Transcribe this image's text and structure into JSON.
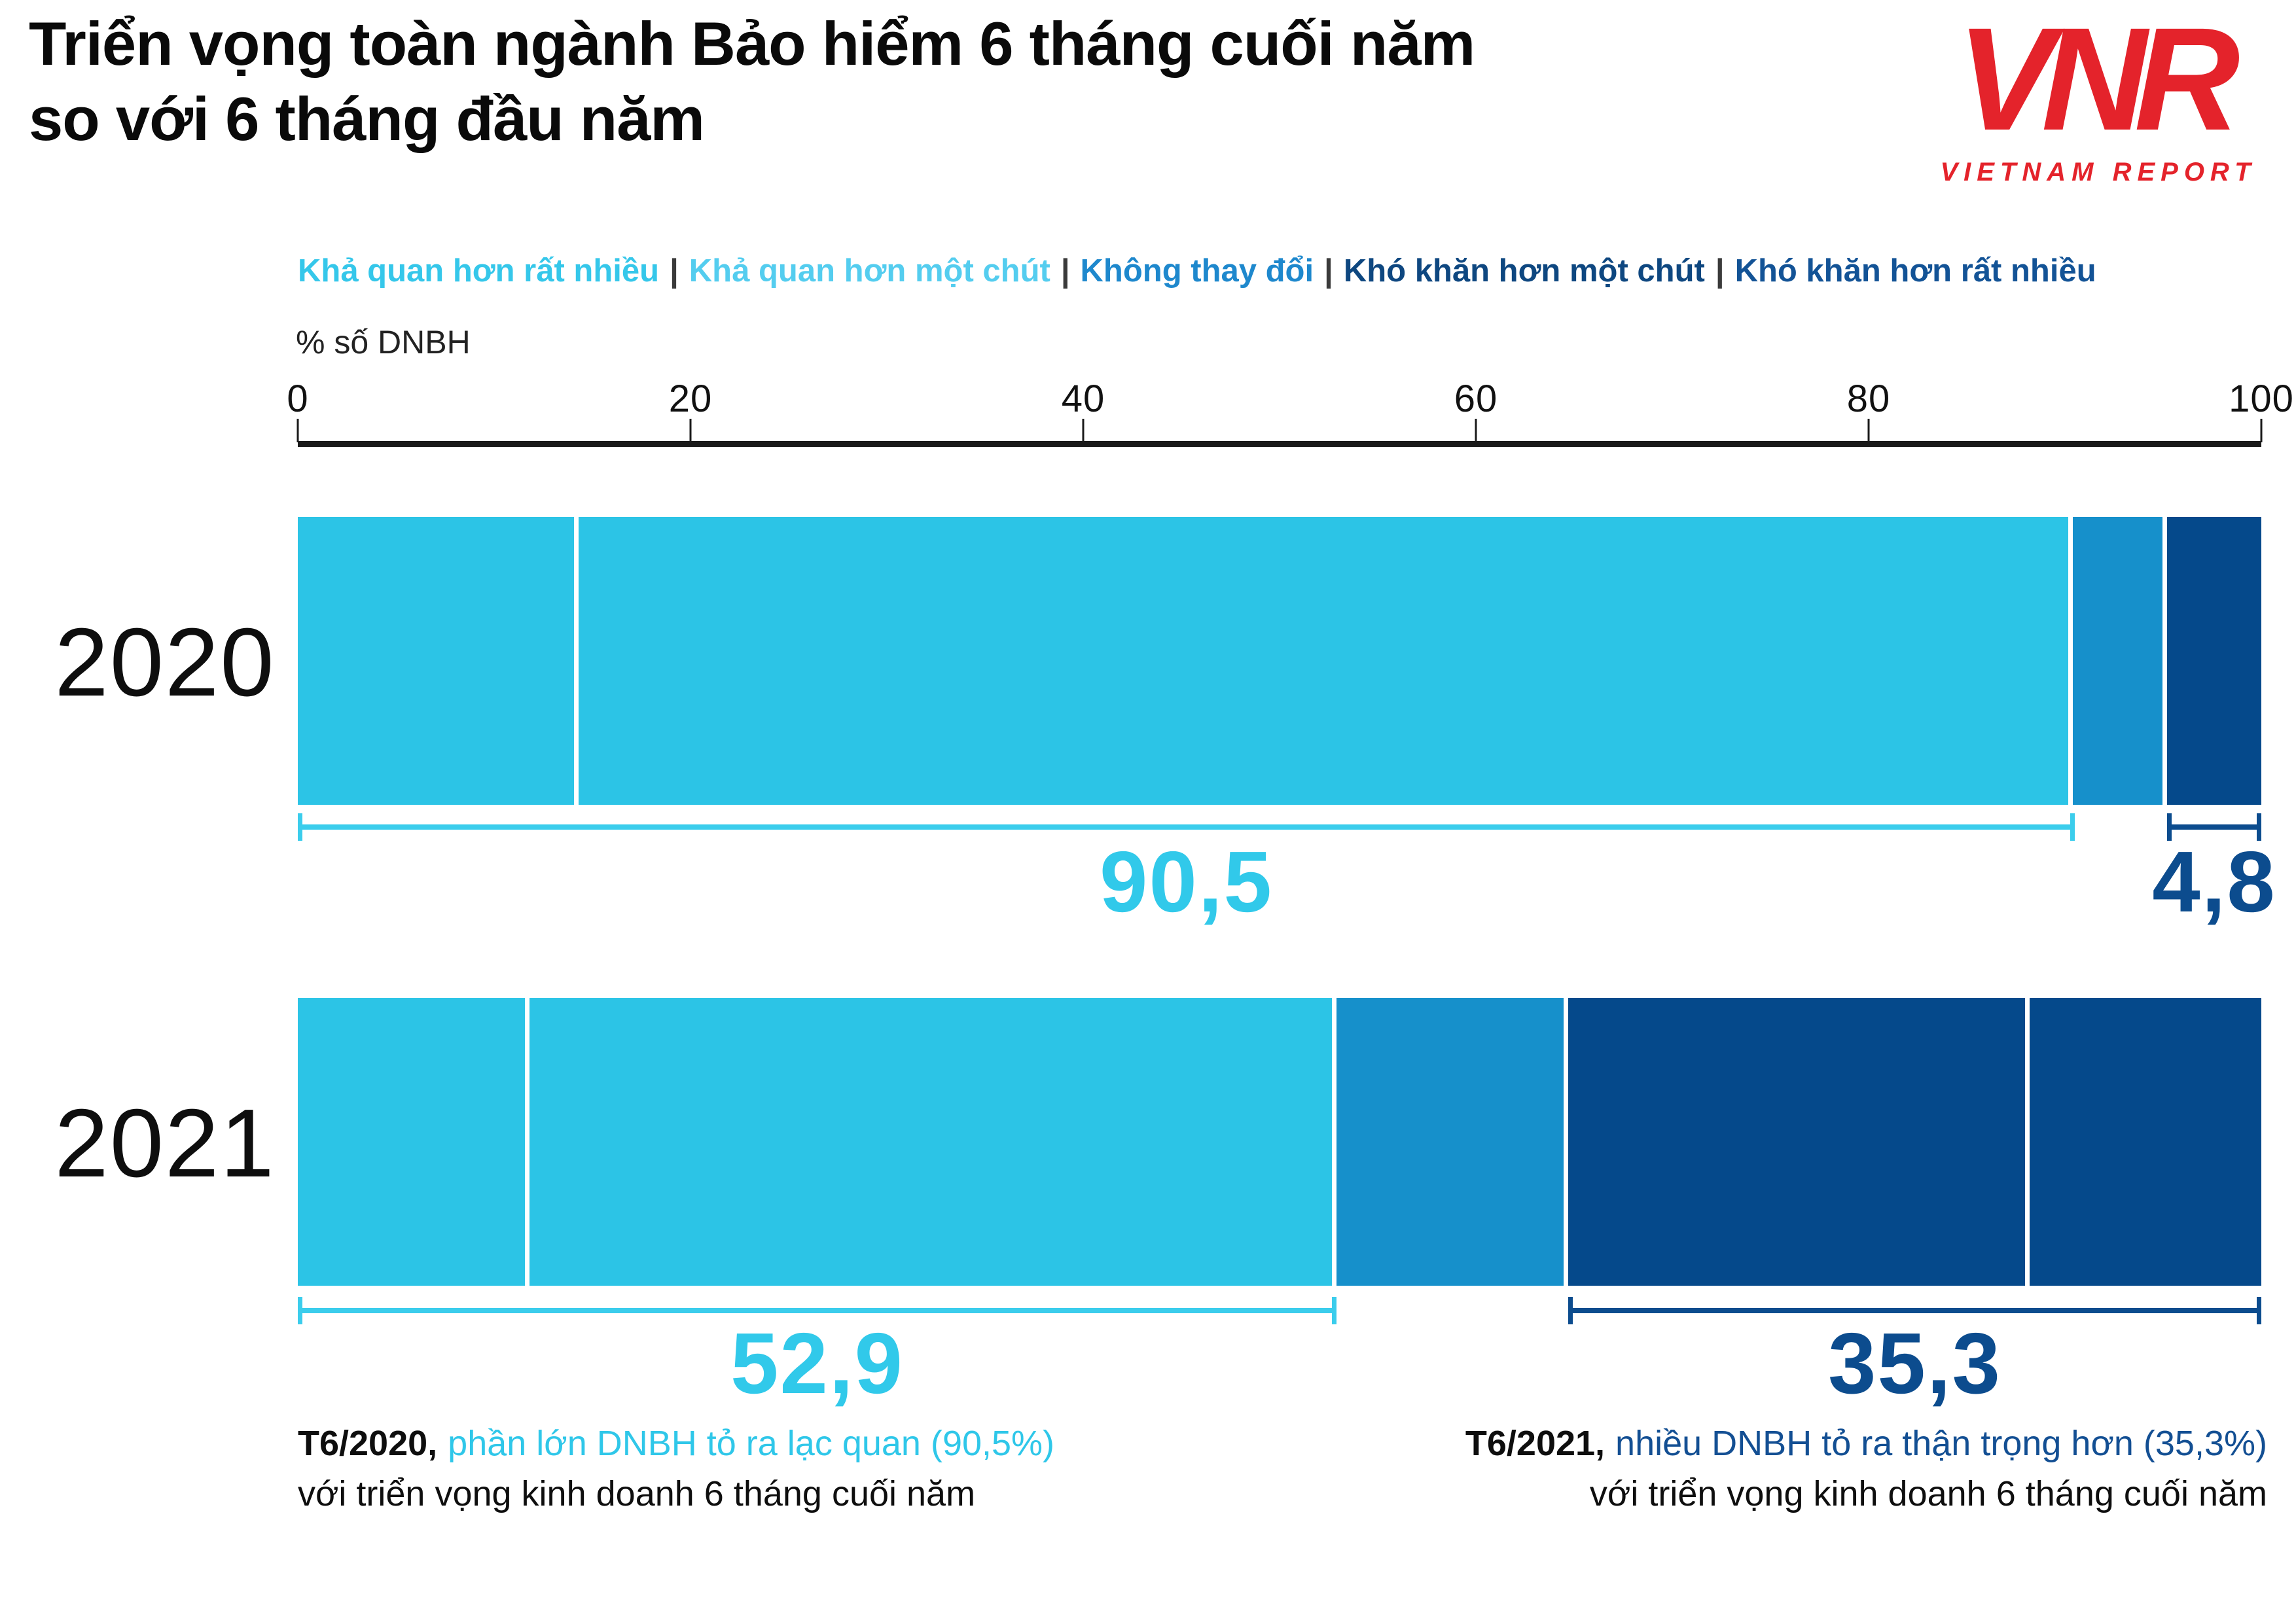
{
  "title": {
    "line1": "Triển vọng toàn ngành Bảo hiểm 6 tháng cuối năm",
    "line2": "so với 6 tháng đầu năm"
  },
  "logo": {
    "monogram": "VNR",
    "wordmark": "VIETNAM REPORT",
    "color": "#e4232b"
  },
  "legend": {
    "separator": "|",
    "items": [
      {
        "label": "Khả quan hơn rất nhiều",
        "color": "#35c7ea"
      },
      {
        "label": "Khả quan hơn một chút",
        "color": "#54cdef"
      },
      {
        "label": "Không thay đổi",
        "color": "#1e88cd"
      },
      {
        "label": "Khó khăn hơn một chút",
        "color": "#0e4780"
      },
      {
        "label": "Khó khăn hơn rất nhiều",
        "color": "#135396"
      }
    ]
  },
  "axis": {
    "unit_label": "% số DNBH",
    "tick_values": [
      0,
      20,
      40,
      60,
      80,
      100
    ],
    "range": [
      0,
      100
    ]
  },
  "chart_data": {
    "type": "bar",
    "orientation": "horizontal",
    "stacked": true,
    "title": "Triển vọng toàn ngành Bảo hiểm 6 tháng cuối năm so với 6 tháng đầu năm",
    "xlabel": "% số DNBH",
    "xlim": [
      0,
      100
    ],
    "x_ticks": [
      0,
      20,
      40,
      60,
      80,
      100
    ],
    "grid": false,
    "legend_position": "top",
    "categories": [
      "Khả quan hơn rất nhiều",
      "Khả quan hơn một chút",
      "Không thay đổi",
      "Khó khăn hơn một chút",
      "Khó khăn hơn rất nhiều"
    ],
    "segment_colors": [
      "#2cc4e6",
      "#2cc4e6",
      "#1690cb",
      "#05498b",
      "#05498b"
    ],
    "series": [
      {
        "name": "2020",
        "values": [
          14.3,
          76.2,
          4.8,
          0,
          4.8
        ],
        "brackets": [
          {
            "label": "90,5",
            "from": 0,
            "to": 90.5,
            "color": "#3bcdec",
            "label_color": "#31c9ea"
          },
          {
            "label": "4,8",
            "from": 95.2,
            "to": 100,
            "color": "#0c4c8e",
            "label_color": "#0c4c8e"
          }
        ]
      },
      {
        "name": "2021",
        "values": [
          11.8,
          41.1,
          11.8,
          23.5,
          11.8
        ],
        "brackets": [
          {
            "label": "52,9",
            "from": 0,
            "to": 52.9,
            "color": "#3bcdec",
            "label_color": "#31c9ea"
          },
          {
            "label": "35,3",
            "from": 64.7,
            "to": 100,
            "color": "#0c4c8e",
            "label_color": "#0c4c8e"
          }
        ]
      }
    ]
  },
  "footnotes": {
    "left": {
      "prefix": "T6/2020,",
      "highlight": "phần lớn DNBH tỏ ra lạc quan (90,5%)",
      "highlight_color": "#2fc7e9",
      "line2": "với triển vọng kinh doanh 6 tháng cuối năm"
    },
    "right": {
      "prefix": "T6/2021,",
      "highlight": "nhiều DNBH tỏ ra thận trọng hơn (35,3%)",
      "highlight_color": "#134f93",
      "line2": "với triển vọng kinh doanh 6 tháng cuối năm"
    }
  }
}
